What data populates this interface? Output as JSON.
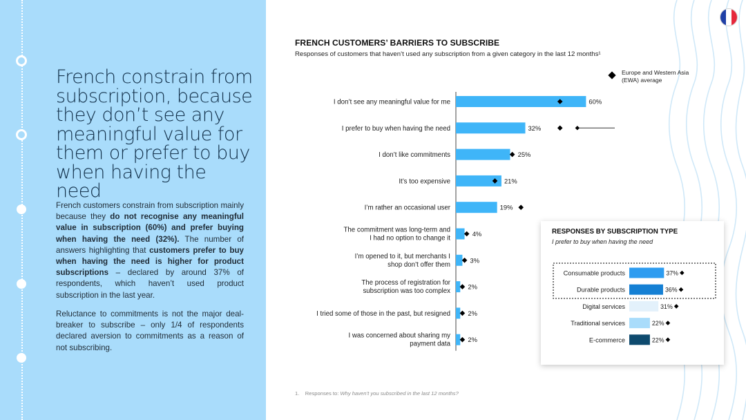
{
  "left_panel": {
    "headline": "French constrain from subscription, because they don’t see any meaningful value for them or prefer to buy when having the need",
    "p1_parts": [
      {
        "t": "French customers constrain from subscription mainly because they ",
        "b": false
      },
      {
        "t": "do not recognise any meaningful value in subscription (60%) and prefer buying when having the need (32%).",
        "b": true
      },
      {
        "t": " The number of answers highlighting that ",
        "b": false
      },
      {
        "t": "customers prefer to buy when having the need is higher for product subscriptions",
        "b": true
      },
      {
        "t": " – declared by around 37% of respondents, which haven’t used product subscription in the last year.",
        "b": false
      }
    ],
    "p2": "Reluctance to commitments is not the major deal-breaker to subscribe – only 1/4 of respondents declared aversion to commitments as a reason of not subscribing."
  },
  "colors": {
    "panel": "#a9dcfb",
    "bar": "#3fb5f8",
    "flag_blue": "#1f3fa6",
    "flag_white": "#ffffff",
    "flag_red": "#e6283c",
    "inset_colors": [
      "#2d9cf0",
      "#1580d4",
      "#e3f1fb",
      "#a9dcfb",
      "#0e4a6e"
    ]
  },
  "flag_icon": "france-flag-icon",
  "chart_data": [
    {
      "type": "bar",
      "title": "FRENCH CUSTOMERS’ BARRIERS TO SUBSCRIBE",
      "subtitle": "Responses of customers that haven’t used any subscription from a given category in the last 12 months¹",
      "legend": "Europe and Western Asia (EWA) average",
      "categories": [
        [
          "I don’t see any meaningful value for me"
        ],
        [
          "I prefer to buy when having the need"
        ],
        [
          "I don’t like commitments"
        ],
        [
          "It’s too expensive"
        ],
        [
          "I’m rather an occasional user"
        ],
        [
          "The commitment was long-term and",
          "I had no option to change it"
        ],
        [
          "I’m opened to it, but merchants I",
          "shop don’t offer them"
        ],
        [
          "The process of registration for",
          "subscription was too complex"
        ],
        [
          "I tried some of those in the past, but resigned"
        ],
        [
          "I was concerned about sharing my",
          "payment data"
        ]
      ],
      "values": [
        60,
        32,
        25,
        21,
        19,
        4,
        3,
        2,
        2,
        2
      ],
      "value_labels": [
        "60%",
        "32%",
        "25%",
        "21%",
        "19%",
        "4%",
        "3%",
        "2%",
        "2%",
        "2%"
      ],
      "ewa_average": [
        48,
        48,
        26,
        18,
        30,
        5,
        4,
        3,
        3,
        3
      ]
    },
    {
      "type": "bar",
      "title": "RESPONSES BY SUBSCRIPTION TYPE",
      "subtitle": "I prefer to buy when having the need",
      "categories": [
        "Consumable products",
        "Durable products",
        "Digital services",
        "Traditional services",
        "E-commerce"
      ],
      "values": [
        37,
        36,
        31,
        22,
        22
      ],
      "value_labels": [
        "37%",
        "36%",
        "31%",
        "22%",
        "22%"
      ],
      "ewa_average": [
        44,
        43,
        38,
        27,
        29
      ],
      "highlighted": [
        "Consumable products",
        "Durable products"
      ]
    }
  ],
  "footnote": {
    "num": "1.",
    "prefix": "Responses to: ",
    "question": "Why haven’t you subscribed in the last 12 months?"
  }
}
